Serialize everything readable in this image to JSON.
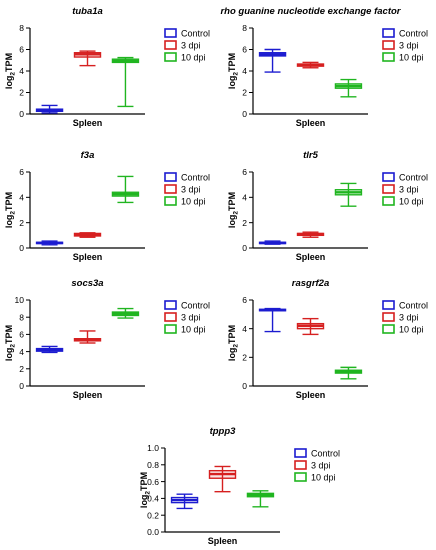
{
  "colors": {
    "control": "#1c1cd0",
    "dpi3": "#d62020",
    "dpi10": "#20b520"
  },
  "legend_labels": [
    "Control",
    "3 dpi",
    "10 dpi"
  ],
  "chart_data": [
    {
      "type": "box",
      "title": "tuba1a",
      "ylabel": "log2TPM",
      "xlabel": "Spleen",
      "yticks": [
        0,
        2,
        4,
        6,
        8
      ],
      "ylim": [
        0,
        8
      ],
      "series": [
        {
          "name": "Control",
          "min": 0.1,
          "q1": 0.25,
          "median": 0.35,
          "q3": 0.45,
          "max": 0.8
        },
        {
          "name": "3 dpi",
          "min": 4.5,
          "q1": 5.3,
          "median": 5.55,
          "q3": 5.7,
          "max": 5.85
        },
        {
          "name": "10 dpi",
          "min": 0.7,
          "q1": 4.8,
          "median": 4.95,
          "q3": 5.1,
          "max": 5.25
        }
      ]
    },
    {
      "type": "box",
      "title": "rho guanine nucleotide exchange factor",
      "ylabel": "log2TPM",
      "xlabel": "Spleen",
      "yticks": [
        0,
        2,
        4,
        6,
        8
      ],
      "ylim": [
        0,
        8
      ],
      "series": [
        {
          "name": "Control",
          "min": 3.9,
          "q1": 5.4,
          "median": 5.55,
          "q3": 5.7,
          "max": 6.0
        },
        {
          "name": "3 dpi",
          "min": 4.3,
          "q1": 4.45,
          "median": 4.55,
          "q3": 4.65,
          "max": 4.8
        },
        {
          "name": "10 dpi",
          "min": 1.6,
          "q1": 2.4,
          "median": 2.6,
          "q3": 2.8,
          "max": 3.2
        }
      ]
    },
    {
      "type": "box",
      "title": "f3a",
      "ylabel": "log2TPM",
      "xlabel": "Spleen",
      "yticks": [
        0,
        2,
        4,
        6
      ],
      "ylim": [
        0,
        6
      ],
      "series": [
        {
          "name": "Control",
          "min": 0.25,
          "q1": 0.35,
          "median": 0.4,
          "q3": 0.45,
          "max": 0.55
        },
        {
          "name": "3 dpi",
          "min": 0.85,
          "q1": 0.95,
          "median": 1.05,
          "q3": 1.15,
          "max": 1.2
        },
        {
          "name": "10 dpi",
          "min": 3.6,
          "q1": 4.1,
          "median": 4.25,
          "q3": 4.4,
          "max": 5.65
        }
      ]
    },
    {
      "type": "box",
      "title": "tlr5",
      "ylabel": "log2TPM",
      "xlabel": "Spleen",
      "yticks": [
        0,
        2,
        4,
        6
      ],
      "ylim": [
        0,
        6
      ],
      "series": [
        {
          "name": "Control",
          "min": 0.3,
          "q1": 0.35,
          "median": 0.4,
          "q3": 0.45,
          "max": 0.55
        },
        {
          "name": "3 dpi",
          "min": 0.85,
          "q1": 1.0,
          "median": 1.1,
          "q3": 1.15,
          "max": 1.25
        },
        {
          "name": "10 dpi",
          "min": 3.3,
          "q1": 4.2,
          "median": 4.4,
          "q3": 4.6,
          "max": 5.1
        }
      ]
    },
    {
      "type": "box",
      "title": "socs3a",
      "ylabel": "log2TPM",
      "xlabel": "Spleen",
      "yticks": [
        0,
        2,
        4,
        6,
        8,
        10
      ],
      "ylim": [
        0,
        10
      ],
      "series": [
        {
          "name": "Control",
          "min": 3.9,
          "q1": 4.05,
          "median": 4.2,
          "q3": 4.35,
          "max": 4.6
        },
        {
          "name": "3 dpi",
          "min": 5.0,
          "q1": 5.25,
          "median": 5.35,
          "q3": 5.5,
          "max": 6.4
        },
        {
          "name": "10 dpi",
          "min": 7.9,
          "q1": 8.2,
          "median": 8.4,
          "q3": 8.6,
          "max": 9.0
        }
      ]
    },
    {
      "type": "box",
      "title": "rasgrf2a",
      "ylabel": "log2TPM",
      "xlabel": "Spleen",
      "yticks": [
        0,
        2,
        4,
        6
      ],
      "ylim": [
        0,
        6
      ],
      "series": [
        {
          "name": "Control",
          "min": 3.8,
          "q1": 5.25,
          "median": 5.3,
          "q3": 5.35,
          "max": 5.4
        },
        {
          "name": "3 dpi",
          "min": 3.6,
          "q1": 4.0,
          "median": 4.2,
          "q3": 4.35,
          "max": 4.7
        },
        {
          "name": "10 dpi",
          "min": 0.5,
          "q1": 0.9,
          "median": 1.0,
          "q3": 1.1,
          "max": 1.3
        }
      ]
    },
    {
      "type": "box",
      "title": "tppp3",
      "ylabel": "log2TPM",
      "xlabel": "Spleen",
      "yticks": [
        0.0,
        0.2,
        0.4,
        0.6,
        0.8,
        1.0
      ],
      "ylim": [
        0,
        1
      ],
      "series": [
        {
          "name": "Control",
          "min": 0.28,
          "q1": 0.35,
          "median": 0.38,
          "q3": 0.41,
          "max": 0.45
        },
        {
          "name": "3 dpi",
          "min": 0.48,
          "q1": 0.64,
          "median": 0.69,
          "q3": 0.73,
          "max": 0.78
        },
        {
          "name": "10 dpi",
          "min": 0.3,
          "q1": 0.42,
          "median": 0.44,
          "q3": 0.46,
          "max": 0.49
        }
      ]
    }
  ]
}
